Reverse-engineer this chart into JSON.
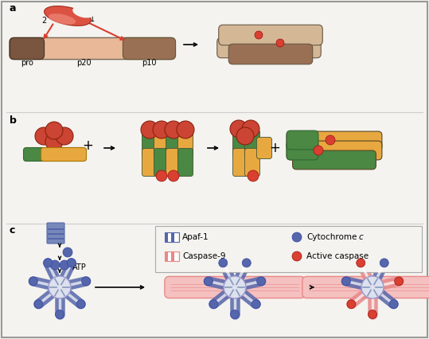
{
  "bg_color": "#f5f3ef",
  "border_color": "#999999",
  "red_color": "#d94030",
  "salmon_body": "#e8b898",
  "pro_color": "#7a5540",
  "p10_color": "#9a7055",
  "tan_body": "#d4b896",
  "orange_color": "#e8a840",
  "green_color": "#4a8844",
  "blue_color": "#5566aa",
  "light_blue": "#7788bb",
  "pink_color": "#e88888",
  "light_pink": "#f5c0c0",
  "white_color": "#ffffff",
  "label_a": "a",
  "label_b": "b",
  "label_c": "c",
  "pro_label": "pro",
  "p20_label": "p20",
  "p10_label": "p10",
  "atp_label": "ATP",
  "legend_items": [
    "Apaf-1",
    "Caspase-9",
    "Cytochrome c",
    "Active caspase"
  ]
}
